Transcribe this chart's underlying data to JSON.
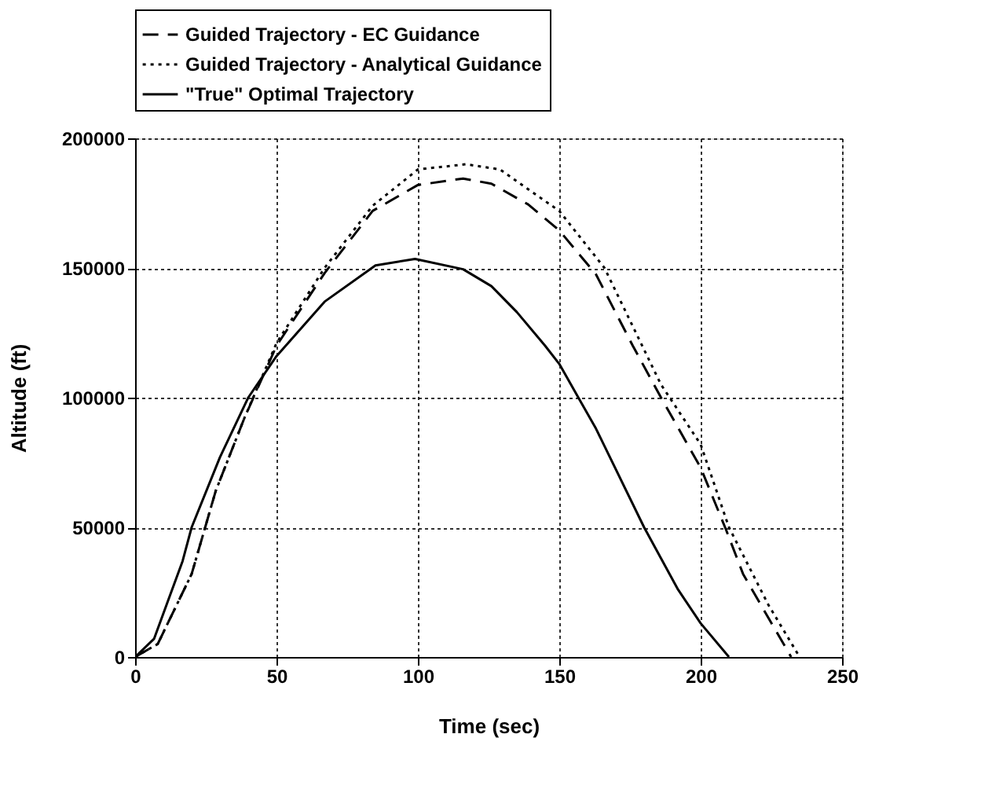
{
  "chart_data": {
    "type": "line",
    "xlabel": "Time  (sec)",
    "ylabel": "Altitude  (ft)",
    "xlim": [
      0,
      250
    ],
    "xticks": [
      0,
      50,
      100,
      150,
      200,
      250
    ],
    "ylim": [
      0,
      200000
    ],
    "yticks": [
      0,
      50000,
      100000,
      150000,
      200000
    ],
    "grid": true,
    "legend": "top",
    "series": [
      {
        "name": "Guided Trajectory - EC Guidance",
        "color": "#000000",
        "line_style": "dashed",
        "x": [
          0,
          8,
          20,
          28.5,
          38.6,
          50,
          67,
          84,
          100,
          116,
          126,
          139,
          150,
          163,
          176,
          186,
          200,
          209,
          215,
          224,
          232
        ],
        "values": [
          0,
          5000,
          32000,
          64000,
          92000,
          120000,
          148000,
          172000,
          182000,
          184500,
          182500,
          174500,
          164500,
          147500,
          120000,
          100000,
          73000,
          49000,
          32000,
          15000,
          0
        ]
      },
      {
        "name": "Guided Trajectory - Analytical Guidance",
        "color": "#000000",
        "line_style": "dotted",
        "x": [
          0,
          8,
          20,
          28.5,
          38.6,
          50,
          67,
          84,
          100,
          117,
          129,
          150,
          166,
          186,
          200,
          210,
          224,
          235
        ],
        "values": [
          0,
          5000,
          32000,
          64000,
          92000,
          121000,
          150000,
          174000,
          188000,
          190000,
          188000,
          172000,
          150000,
          105000,
          82000,
          50000,
          20000,
          0
        ]
      },
      {
        "name": "\"True\" Optimal Trajectory",
        "color": "#000000",
        "line_style": "solid",
        "x": [
          0,
          6.7,
          16.8,
          20,
          30,
          40,
          50,
          67,
          85,
          99,
          116,
          126,
          135,
          145,
          150,
          163,
          180,
          192,
          200,
          210
        ],
        "values": [
          0,
          7000,
          37000,
          50000,
          77000,
          100000,
          116000,
          137000,
          151000,
          153500,
          149500,
          143000,
          133000,
          120000,
          113000,
          88000,
          50000,
          26000,
          13000,
          0
        ]
      }
    ]
  }
}
